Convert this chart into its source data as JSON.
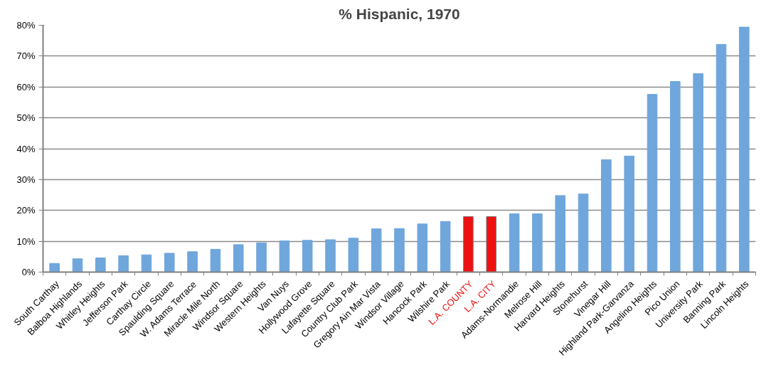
{
  "chart_data": {
    "type": "bar",
    "title": "% Hispanic, 1970",
    "categories": [
      "South Carthay",
      "Balboa Highlands",
      "Whitley Heights",
      "Jefferson Park",
      "Carthay Circle",
      "Spaulding Square",
      "W. Adams Terrace",
      "Miracle Mile North",
      "Windsor Square",
      "Western Heights",
      "Van Nuys",
      "Hollywood Grove",
      "Lafayette Square",
      "Country Club Park",
      "Gregory Ain Mar Vista",
      "Windsor Village",
      "Hancock Park",
      "Wilshire Park",
      "L.A. COUNTY",
      "L.A. CITY",
      "Adams-Normandie",
      "Melrose Hill",
      "Harvard Heights",
      "Stonehurst",
      "Vinegar Hill",
      "Highland Park-Garvanza",
      "Angelino Heights",
      "Pico Union",
      "University Park",
      "Banning Park",
      "Lincoln Heights"
    ],
    "values": [
      2.8,
      4.3,
      4.6,
      5.3,
      5.6,
      6.1,
      6.6,
      7.4,
      8.9,
      9.5,
      10.1,
      10.3,
      10.5,
      11.0,
      14.0,
      14.1,
      15.6,
      16.4,
      18.0,
      18.0,
      18.9,
      18.9,
      24.8,
      25.3,
      36.4,
      37.6,
      57.6,
      61.8,
      64.3,
      73.8,
      79.4
    ],
    "color": "#6fa6dc",
    "colors": [
      "#6fa6dc",
      "#6fa6dc",
      "#6fa6dc",
      "#6fa6dc",
      "#6fa6dc",
      "#6fa6dc",
      "#6fa6dc",
      "#6fa6dc",
      "#6fa6dc",
      "#6fa6dc",
      "#6fa6dc",
      "#6fa6dc",
      "#6fa6dc",
      "#6fa6dc",
      "#6fa6dc",
      "#6fa6dc",
      "#6fa6dc",
      "#6fa6dc",
      "#ee1111",
      "#ee1111",
      "#6fa6dc",
      "#6fa6dc",
      "#6fa6dc",
      "#6fa6dc",
      "#6fa6dc",
      "#6fa6dc",
      "#6fa6dc",
      "#6fa6dc",
      "#6fa6dc",
      "#6fa6dc",
      "#6fa6dc"
    ],
    "ylim": [
      0,
      80
    ],
    "yticks": [
      {
        "value": 0,
        "label": "0%"
      },
      {
        "value": 10,
        "label": "10%"
      },
      {
        "value": 20,
        "label": "20%"
      },
      {
        "value": 30,
        "label": "30%"
      },
      {
        "value": 40,
        "label": "40%"
      },
      {
        "value": 50,
        "label": "50%"
      },
      {
        "value": 60,
        "label": "60%"
      },
      {
        "value": 70,
        "label": "70%"
      },
      {
        "value": 80,
        "label": "80%"
      }
    ],
    "grid": "y"
  }
}
